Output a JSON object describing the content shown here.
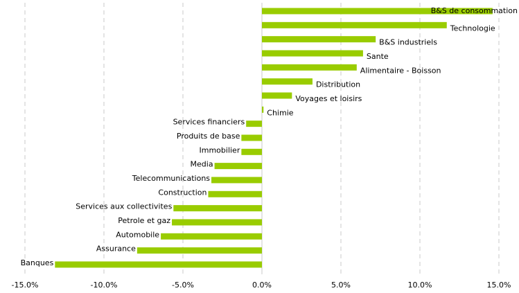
{
  "chart_data": {
    "type": "barh",
    "categories": [
      "B&S de consommation",
      "Technologie",
      "B&S industriels",
      "Sante",
      "Alimentaire - Boisson",
      "Distribution",
      "Voyages et loisirs",
      "Chimie",
      "Services financiers",
      "Produits de base",
      "Immobilier",
      "Media",
      "Telecommunications",
      "Construction",
      "Services aux collectivites",
      "Petrole et gaz",
      "Automobile",
      "Assurance",
      "Banques"
    ],
    "values": [
      14.6,
      11.7,
      7.2,
      6.4,
      6.0,
      3.2,
      1.9,
      0.1,
      -1.0,
      -1.3,
      -1.3,
      -3.0,
      -3.2,
      -3.4,
      -5.6,
      -5.7,
      -6.4,
      -7.9,
      -13.1
    ],
    "color": "#99cc00",
    "xlim": [
      -15,
      15
    ],
    "xticks": [
      {
        "value": -15,
        "label": "-15.0%"
      },
      {
        "value": -10,
        "label": "-10.0%"
      },
      {
        "value": -5,
        "label": "-5.0%"
      },
      {
        "value": 0,
        "label": "0.0%"
      },
      {
        "value": 5,
        "label": "5.0%"
      },
      {
        "value": 10,
        "label": "10.0%"
      },
      {
        "value": 15,
        "label": "15.0%"
      }
    ],
    "grid": true
  }
}
